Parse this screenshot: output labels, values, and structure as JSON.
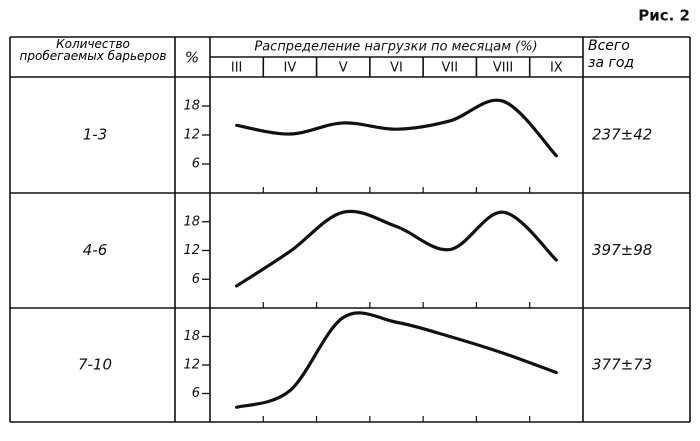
{
  "figure_label": "Рис. 2",
  "header": {
    "group": "Количество пробегаемых барьеров",
    "unit": "%",
    "distribution": "Распределение нагрузки по месяцам (%)",
    "total": "Всего за год"
  },
  "rows": [
    {
      "group": "1-3",
      "total": "237±42"
    },
    {
      "group": "4-6",
      "total": "397±98"
    },
    {
      "group": "7-10",
      "total": "377±73"
    }
  ],
  "chart_data": [
    {
      "type": "line",
      "categories": [
        "III",
        "IV",
        "V",
        "VI",
        "VII",
        "VIII",
        "IX"
      ],
      "values": [
        14,
        12.2,
        14.5,
        13.2,
        14.9,
        19,
        7.7
      ],
      "color": "#111",
      "ylim": [
        0,
        24
      ],
      "yticks": [
        6,
        12,
        18
      ]
    },
    {
      "type": "line",
      "categories": [
        "III",
        "IV",
        "V",
        "VI",
        "VII",
        "VIII",
        "IX"
      ],
      "values": [
        4.6,
        11.8,
        20,
        17,
        12.2,
        20,
        10
      ],
      "color": "#111",
      "ylim": [
        0,
        24
      ],
      "yticks": [
        6,
        12,
        18
      ]
    },
    {
      "type": "line",
      "categories": [
        "III",
        "IV",
        "V",
        "VI",
        "VII",
        "VIII",
        "IX"
      ],
      "values": [
        3.1,
        6.6,
        22,
        21,
        18,
        14.5,
        10.4
      ],
      "color": "#111",
      "ylim": [
        0,
        24
      ],
      "yticks": [
        6,
        12,
        18
      ]
    }
  ]
}
